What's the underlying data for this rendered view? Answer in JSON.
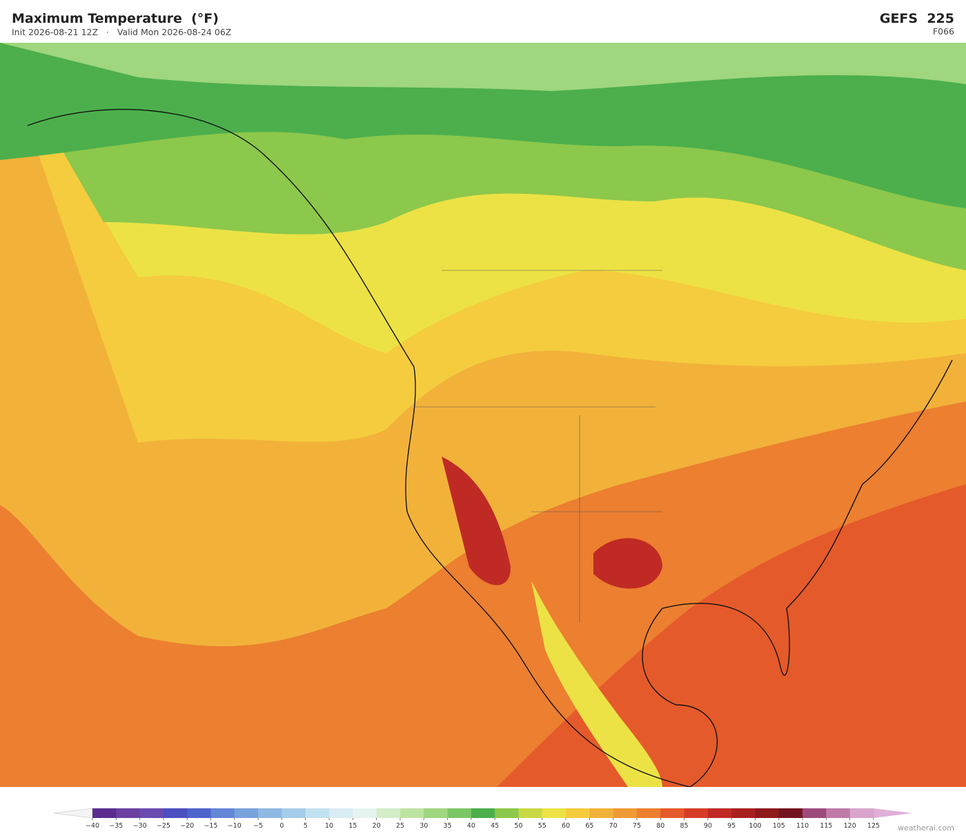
{
  "header": {
    "title": "Maximum Temperature  (°F)",
    "subtitle": "Init 2026-08-21 12Z   ·   Valid Mon 2026-08-24 06Z",
    "model": "GEFS  225",
    "forecast_hour": "F066"
  },
  "legend": {
    "ticks": [
      {
        "value": -40,
        "label": "−40"
      },
      {
        "value": -35,
        "label": "−35"
      },
      {
        "value": -30,
        "label": "−30"
      },
      {
        "value": -25,
        "label": "−25"
      },
      {
        "value": -20,
        "label": "−20"
      },
      {
        "value": -15,
        "label": "−15"
      },
      {
        "value": -10,
        "label": "−10"
      },
      {
        "value": -5,
        "label": "−5"
      },
      0,
      5,
      10,
      15,
      20,
      25,
      30,
      35,
      40,
      45,
      50,
      55,
      60,
      65,
      70,
      75,
      80,
      85,
      90,
      95,
      100,
      105,
      110,
      115,
      120,
      125
    ],
    "colors": [
      "#5b2d8e",
      "#6b3fa0",
      "#6a4bb0",
      "#4b4fc0",
      "#4d64cc",
      "#6387d6",
      "#78a2dc",
      "#8fb8e2",
      "#a5cdea",
      "#c2e1f0",
      "#d8ecf3",
      "#e5f4ee",
      "#d4ecc8",
      "#bde3a0",
      "#9fd67e",
      "#7cc765",
      "#4caf4c",
      "#8cc84b",
      "#c9d944",
      "#ece245",
      "#f5cc3e",
      "#f2b23a",
      "#ef9a35",
      "#ec7f30",
      "#e55a2b",
      "#d63c26",
      "#c02a24",
      "#a8201f",
      "#8e1a1c",
      "#721520",
      "#9c4a7c",
      "#c07aa8",
      "#d8a4cc"
    ],
    "under_color": "#f4f4f4",
    "over_color": "#e0b0d8"
  },
  "credit": "weatherai.com"
}
